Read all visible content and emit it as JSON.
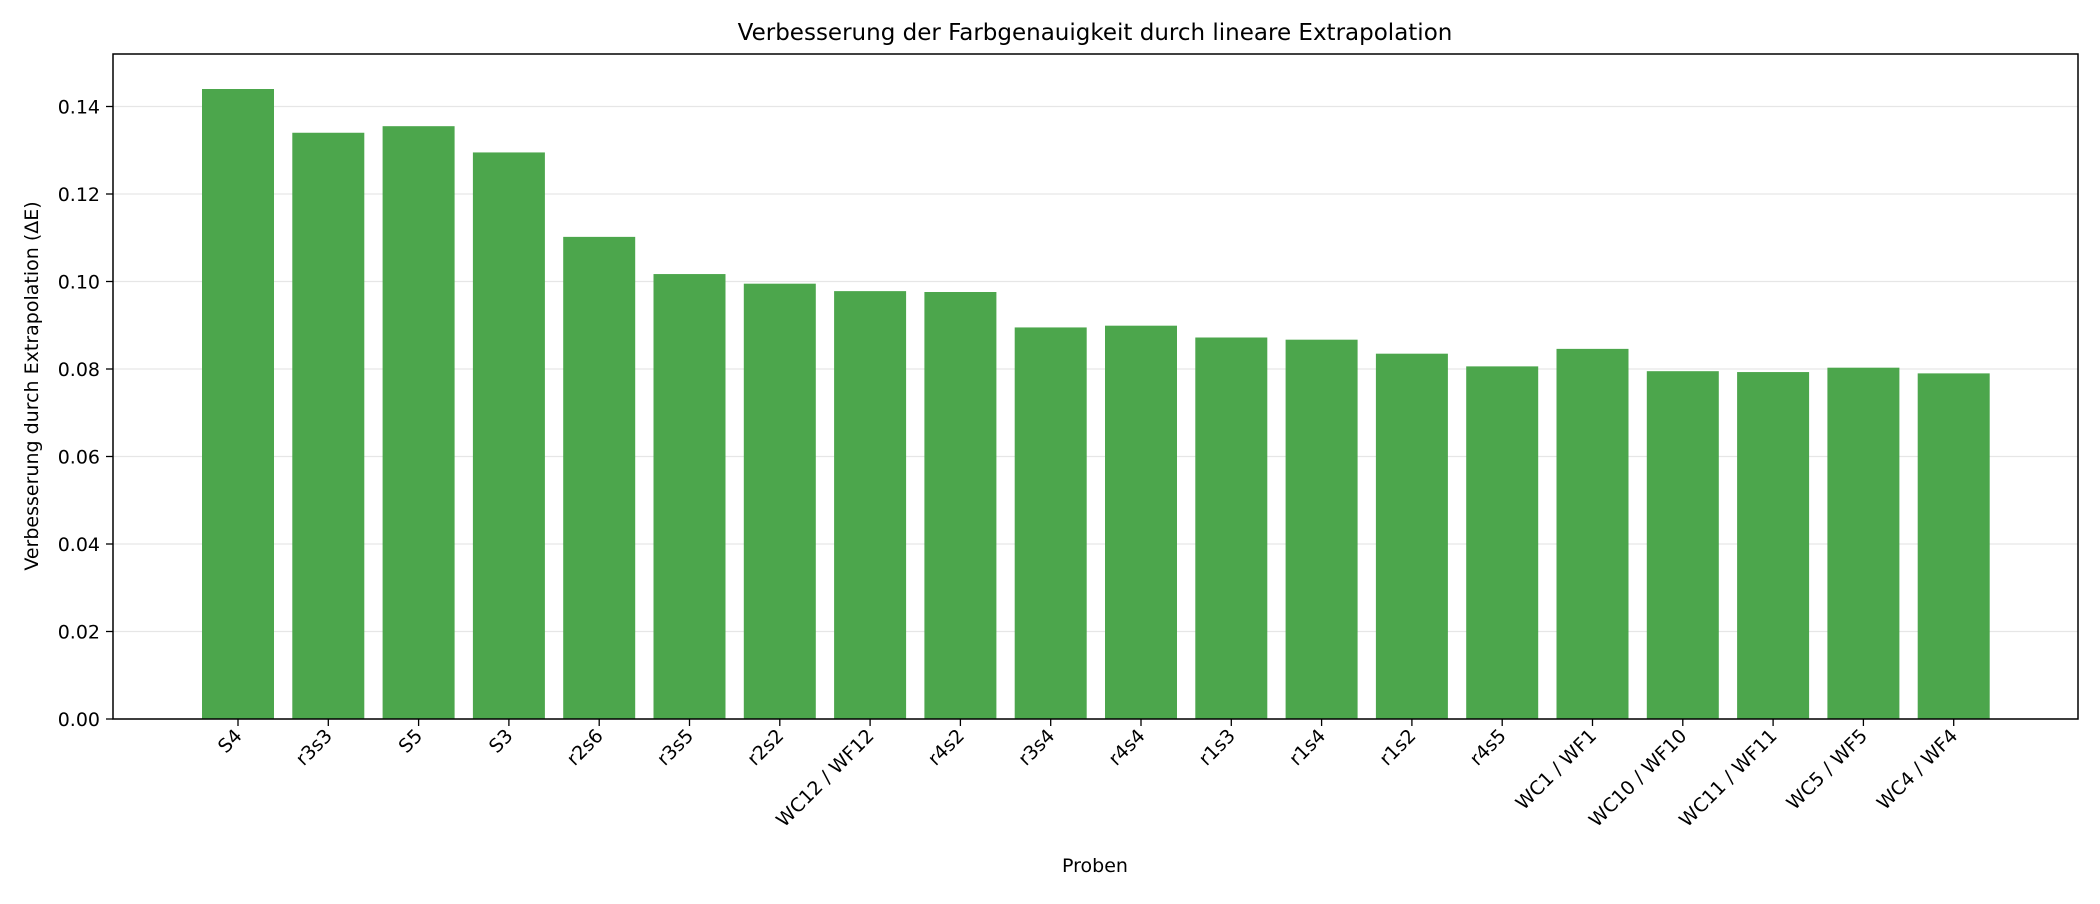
{
  "chart_data": {
    "type": "bar",
    "title": "Verbesserung der Farbgenauigkeit durch lineare Extrapolation",
    "xlabel": "Proben",
    "ylabel": "Verbesserung durch Extrapolation (ΔE)",
    "categories": [
      "S4",
      "r3s3",
      "S5",
      "S3",
      "r2s6",
      "r3s5",
      "r2s2",
      "WC12 / WF12",
      "r4s2",
      "r3s4",
      "r4s4",
      "r1s3",
      "r1s4",
      "r1s2",
      "r4s5",
      "WC1 / WF1",
      "WC10 / WF10",
      "WC11 / WF11",
      "WC5 / WF5",
      "WC4 / WF4"
    ],
    "values": [
      0.144,
      0.134,
      0.1355,
      0.1295,
      0.1102,
      0.1017,
      0.0995,
      0.0978,
      0.0976,
      0.0895,
      0.0899,
      0.0872,
      0.0867,
      0.0835,
      0.0806,
      0.0846,
      0.0795,
      0.0793,
      0.0803,
      0.079
    ],
    "ylim": [
      0,
      0.152
    ],
    "yticks": [
      0.0,
      0.02,
      0.04,
      0.06,
      0.08,
      0.1,
      0.12,
      0.14
    ],
    "ytick_labels": [
      "0.00",
      "0.02",
      "0.04",
      "0.06",
      "0.08",
      "0.10",
      "0.12",
      "0.14"
    ],
    "grid": "y-axis",
    "bar_color": "#4ca64c",
    "legend": null
  }
}
